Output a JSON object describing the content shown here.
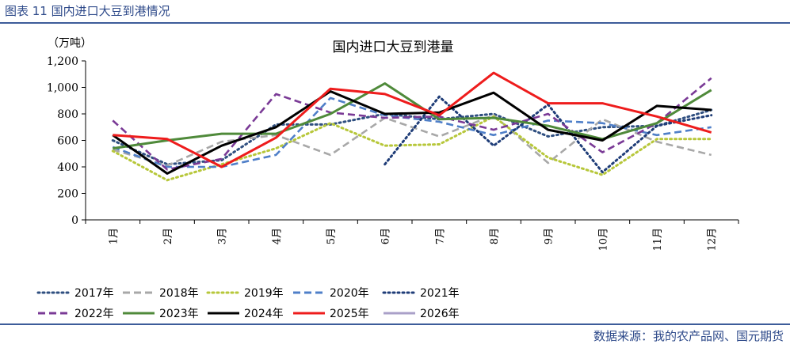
{
  "figure_title": "图表 11 国内进口大豆到港情况",
  "source": "数据来源：我的农产品网、国元期货",
  "colors": {
    "2017": "#2f4f80",
    "2018": "#a8a8a8",
    "2019": "#b7c73a",
    "2020": "#4f7fc8",
    "2021": "#1f3d78",
    "2022": "#7a3a96",
    "2023": "#4f8a3a",
    "2024": "#000000",
    "2025": "#ee1c1c",
    "2026": "#aaa0c8"
  },
  "chart_data": {
    "type": "line",
    "title": "国内进口大豆到港量",
    "ylabel": "（万吨）",
    "xlabel": "",
    "ylim": [
      0,
      1200
    ],
    "yticks": [
      "0",
      "200",
      "400",
      "600",
      "800",
      "1,000",
      "1,200"
    ],
    "categories": [
      "1月",
      "2月",
      "3月",
      "4月",
      "5月",
      "6月",
      "7月",
      "8月",
      "9月",
      "10月",
      "11月",
      "12月"
    ],
    "legend_position": "bottom",
    "series": [
      {
        "name": "2017年",
        "key": "2017",
        "dash": "dot",
        "values": [
          600,
          420,
          450,
          720,
          720,
          800,
          760,
          800,
          630,
          700,
          710,
          830
        ]
      },
      {
        "name": "2018年",
        "key": "2018",
        "dash": "dash",
        "values": [
          530,
          410,
          590,
          640,
          490,
          770,
          630,
          790,
          430,
          760,
          590,
          490
        ]
      },
      {
        "name": "2019年",
        "key": "2019",
        "dash": "dot",
        "values": [
          520,
          300,
          420,
          540,
          730,
          560,
          570,
          780,
          470,
          340,
          610,
          610
        ]
      },
      {
        "name": "2020年",
        "key": "2020",
        "dash": "dash",
        "values": [
          550,
          400,
          400,
          490,
          920,
          790,
          740,
          640,
          750,
          730,
          640,
          700
        ]
      },
      {
        "name": "2021年",
        "key": "2021",
        "dash": "dot",
        "values": [
          null,
          null,
          null,
          null,
          null,
          420,
          930,
          560,
          870,
          360,
          710,
          790
        ]
      },
      {
        "name": "2022年",
        "key": "2022",
        "dash": "dash",
        "values": [
          750,
          380,
          460,
          950,
          810,
          770,
          780,
          680,
          800,
          510,
          730,
          1070
        ]
      },
      {
        "name": "2023年",
        "key": "2023",
        "dash": "solid",
        "values": [
          540,
          600,
          650,
          650,
          800,
          1030,
          760,
          770,
          710,
          610,
          730,
          980
        ]
      },
      {
        "name": "2024年",
        "key": "2024",
        "dash": "solid",
        "values": [
          640,
          350,
          560,
          700,
          970,
          800,
          810,
          960,
          680,
          600,
          860,
          830
        ]
      },
      {
        "name": "2025年",
        "key": "2025",
        "dash": "solid",
        "values": [
          640,
          610,
          400,
          620,
          990,
          950,
          790,
          1110,
          880,
          880,
          780,
          660
        ]
      },
      {
        "name": "2026年",
        "key": "2026",
        "dash": "solid",
        "values": [
          null,
          null,
          null,
          null,
          null,
          null,
          null,
          null,
          null,
          null,
          null,
          null
        ]
      }
    ]
  }
}
